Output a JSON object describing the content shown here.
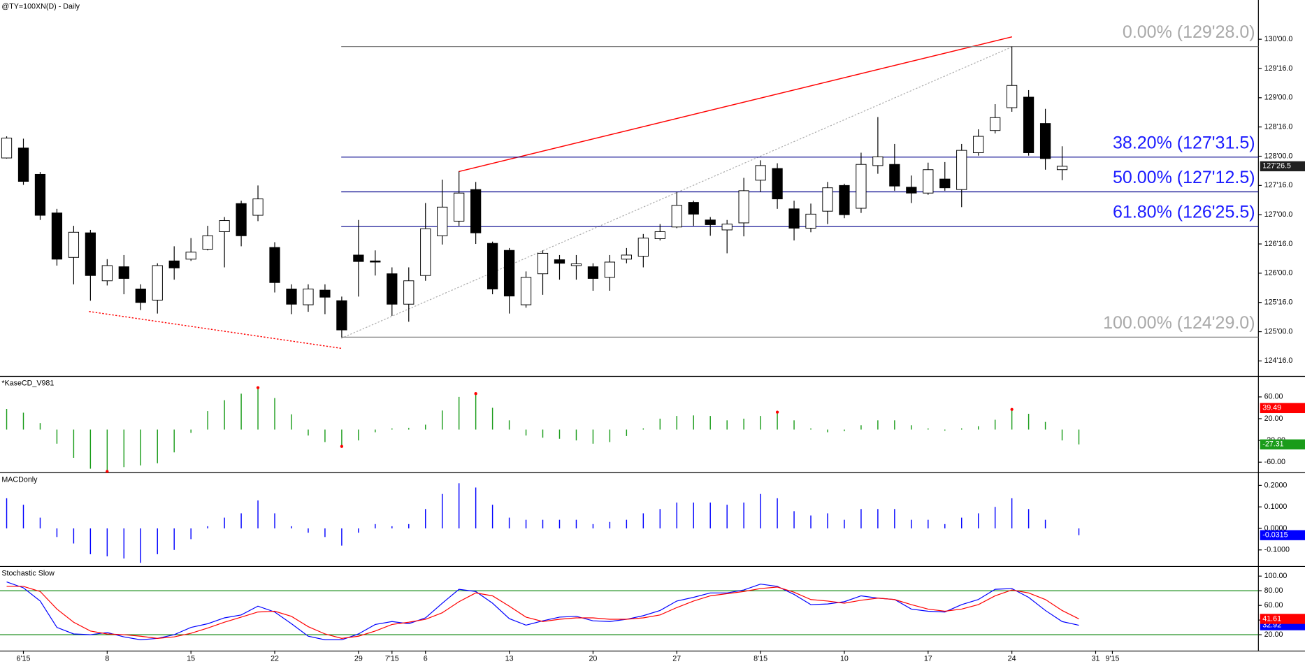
{
  "chart_data": [
    {
      "type": "candlestick",
      "title": "@TY=100XN(D) - Daily",
      "categories": [
        null,
        "6'15",
        null,
        null,
        null,
        null,
        "8",
        null,
        null,
        null,
        null,
        "15",
        null,
        null,
        null,
        null,
        "22",
        null,
        null,
        null,
        null,
        "29",
        null,
        "7'15",
        null,
        "6",
        null,
        null,
        null,
        null,
        "13",
        null,
        null,
        null,
        null,
        "20",
        null,
        null,
        null,
        null,
        "27",
        null,
        null,
        null,
        null,
        "8'15",
        null,
        null,
        null,
        null,
        "10",
        null,
        null,
        null,
        null,
        "17",
        null,
        null,
        null,
        null,
        "24",
        null,
        null,
        null,
        null,
        "31",
        "9'15"
      ],
      "open": [
        127.97,
        128.14,
        127.69,
        127.03,
        126.27,
        126.69,
        125.87,
        126.11,
        125.73,
        125.54,
        126.21,
        126.24,
        126.41,
        126.71,
        127.19,
        126.99,
        126.44,
        125.73,
        125.46,
        125.71,
        125.53,
        126.31,
        126.21,
        125.99,
        125.47,
        125.96,
        126.64,
        126.89,
        127.43,
        126.51,
        126.39,
        125.46,
        125.99,
        126.23,
        126.13,
        126.11,
        125.93,
        126.24,
        126.29,
        126.59,
        126.79,
        127.21,
        126.91,
        126.74,
        126.86,
        127.59,
        127.79,
        127.1,
        126.77,
        127.06,
        127.5,
        127.11,
        127.84,
        127.86,
        127.47,
        127.37,
        127.61,
        127.43,
        128.06,
        128.44,
        128.83,
        129.01,
        128.56,
        127.77,
        null,
        null,
        null
      ],
      "high": [
        128.34,
        128.3,
        127.73,
        127.1,
        126.81,
        126.74,
        126.24,
        126.31,
        125.81,
        126.17,
        126.46,
        126.6,
        126.81,
        126.96,
        127.24,
        127.5,
        126.53,
        125.81,
        125.81,
        125.81,
        125.6,
        126.91,
        126.39,
        126.1,
        126.1,
        127.2,
        127.6,
        127.74,
        127.56,
        126.54,
        126.43,
        126.03,
        126.39,
        126.31,
        126.31,
        126.17,
        126.31,
        126.43,
        126.67,
        126.84,
        127.39,
        127.24,
        126.96,
        126.91,
        127.63,
        127.93,
        127.88,
        127.24,
        127.19,
        127.56,
        127.53,
        128.06,
        128.67,
        128.21,
        127.67,
        127.89,
        127.9,
        128.21,
        128.46,
        128.89,
        129.875,
        129.13,
        128.81,
        128.17,
        null,
        null,
        null
      ],
      "low": [
        127.96,
        127.51,
        126.91,
        126.13,
        125.81,
        125.53,
        125.79,
        125.64,
        125.37,
        125.31,
        125.89,
        126.21,
        126.39,
        126.1,
        126.46,
        126.89,
        125.67,
        125.3,
        125.34,
        125.3,
        124.906,
        125.6,
        125.96,
        125.27,
        125.17,
        125.87,
        126.49,
        126.81,
        126.5,
        125.64,
        125.31,
        125.41,
        125.63,
        125.89,
        125.89,
        125.7,
        125.7,
        126.17,
        126.1,
        126.56,
        126.77,
        126.81,
        126.64,
        126.34,
        126.63,
        127.39,
        127.1,
        126.56,
        126.7,
        126.84,
        126.94,
        127.03,
        127.7,
        127.41,
        127.2,
        127.34,
        127.41,
        127.13,
        128.01,
        128.39,
        128.76,
        128.01,
        127.77,
        127.59,
        null,
        null,
        null
      ],
      "close": [
        128.31,
        127.57,
        126.99,
        126.24,
        126.7,
        125.96,
        126.13,
        125.91,
        125.5,
        126.13,
        126.09,
        126.36,
        126.64,
        126.9,
        126.64,
        127.27,
        125.84,
        125.47,
        125.73,
        125.59,
        125.03,
        126.2,
        126.19,
        125.47,
        125.87,
        126.76,
        127.13,
        127.37,
        126.69,
        125.73,
        125.61,
        125.93,
        126.34,
        126.17,
        126.16,
        125.91,
        126.19,
        126.31,
        126.6,
        126.71,
        127.16,
        127.01,
        126.83,
        126.84,
        127.41,
        127.84,
        127.27,
        126.77,
        127.01,
        127.46,
        127.0,
        127.86,
        127.99,
        127.49,
        127.37,
        127.77,
        127.46,
        128.1,
        128.34,
        128.66,
        129.21,
        128.06,
        127.96,
        127.828125,
        null,
        null,
        null
      ],
      "last_label": "127'26.5",
      "ylim": [
        124.243,
        130.671
      ],
      "yticks": [
        {
          "value": 124.5,
          "label": "124'16.0"
        },
        {
          "value": 125,
          "label": "125'00.0"
        },
        {
          "value": 125.5,
          "label": "125'16.0"
        },
        {
          "value": 126,
          "label": "126'00.0"
        },
        {
          "value": 126.5,
          "label": "126'16.0"
        },
        {
          "value": 127,
          "label": "127'00.0"
        },
        {
          "value": 127.5,
          "label": "127'16.0"
        },
        {
          "value": 128,
          "label": "128'00.0"
        },
        {
          "value": 128.5,
          "label": "128'16.0"
        },
        {
          "value": 129,
          "label": "129'00.0"
        },
        {
          "value": 129.5,
          "label": "129'16.0"
        },
        {
          "value": 130,
          "label": "130'00.0"
        }
      ],
      "fib_levels": [
        {
          "label": "0.00% (129'28.0)",
          "value": 129.875,
          "color": "#808080",
          "text_color": "#a9a9a9"
        },
        {
          "label": "38.20% (127'31.5)",
          "value": 127.984375,
          "color": "#00008b",
          "text_color": "#1a1aff"
        },
        {
          "label": "50.00% (127'12.5)",
          "value": 127.390625,
          "color": "#00008b",
          "text_color": "#1a1aff"
        },
        {
          "label": "61.80% (126'25.5)",
          "value": 126.796875,
          "color": "#00008b",
          "text_color": "#1a1aff"
        },
        {
          "label": "100.00% (124'29.0)",
          "value": 124.90625,
          "color": "#808080",
          "text_color": "#a9a9a9"
        }
      ]
    },
    {
      "type": "bar",
      "title": "*KaseCD_V981",
      "color": "#1a9c1a",
      "marker_color": "#ff0000",
      "badge_color": "#1a9c1a",
      "values": [
        38,
        31,
        12,
        -26,
        -52,
        -72,
        -77,
        -69,
        -66,
        -62,
        -42,
        -6,
        34,
        54,
        66,
        77,
        58,
        28,
        -11,
        -23,
        -31,
        -20,
        -5,
        2,
        3,
        9,
        35,
        60,
        66,
        40,
        17,
        -11,
        -15,
        -17,
        -20,
        -26,
        -23,
        -12,
        2,
        20,
        25,
        26,
        25,
        17,
        20,
        25,
        32,
        17,
        2,
        -5,
        -3,
        8,
        17,
        17,
        8,
        2,
        -2,
        2,
        6,
        18,
        37,
        29,
        14,
        -20,
        -27.31,
        null,
        null
      ],
      "markers": [
        6,
        15,
        20,
        28,
        46,
        60
      ],
      "badges": [
        {
          "value": 39.49,
          "color": "#ff0000"
        }
      ],
      "ylim": [
        -77,
        97
      ],
      "yticks": [
        {
          "value": -60,
          "label": "-60.00"
        },
        {
          "value": -20,
          "label": "-20.00"
        },
        {
          "value": 20,
          "label": "20.00"
        },
        {
          "value": 60,
          "label": "60.00"
        }
      ]
    },
    {
      "type": "bar",
      "title": "MACDonly",
      "color": "#0000ff",
      "badge_color": "#0000ff",
      "values": [
        0.14,
        0.11,
        0.05,
        -0.04,
        -0.07,
        -0.12,
        -0.13,
        -0.14,
        -0.16,
        -0.12,
        -0.1,
        -0.05,
        0.01,
        0.05,
        0.07,
        0.13,
        0.07,
        0.01,
        -0.02,
        -0.04,
        -0.08,
        -0.02,
        0.02,
        0.01,
        0.02,
        0.09,
        0.16,
        0.21,
        0.19,
        0.11,
        0.05,
        0.04,
        0.04,
        0.04,
        0.04,
        0.02,
        0.03,
        0.04,
        0.07,
        0.09,
        0.12,
        0.12,
        0.12,
        0.11,
        0.12,
        0.16,
        0.14,
        0.08,
        0.06,
        0.07,
        0.04,
        0.09,
        0.09,
        0.09,
        0.04,
        0.04,
        0.02,
        0.05,
        0.07,
        0.1,
        0.14,
        0.09,
        0.04,
        0,
        -0.0315,
        null,
        null
      ],
      "ylim": [
        -0.171,
        0.257
      ],
      "yticks": [
        {
          "value": -0.1,
          "label": "-0.1000"
        },
        {
          "value": 0,
          "label": "0.0000"
        },
        {
          "value": 0.1,
          "label": "0.1000"
        },
        {
          "value": 0.2,
          "label": "0.2000"
        }
      ]
    },
    {
      "type": "line",
      "title": "Stochastic Slow",
      "series": [
        {
          "color": "#0000ff",
          "badge_color": "#0000ff",
          "values": [
            92,
            84,
            66,
            30,
            21,
            20,
            23,
            17,
            13,
            15,
            20,
            30,
            35,
            43,
            47,
            59,
            51,
            35,
            18,
            13,
            13,
            21,
            34,
            38,
            35,
            43,
            63,
            82,
            79,
            63,
            42,
            33,
            39,
            44,
            45,
            39,
            38,
            41,
            46,
            53,
            66,
            71,
            77,
            77,
            81,
            89,
            86,
            75,
            61,
            62,
            65,
            73,
            70,
            68,
            55,
            52,
            51,
            61,
            68,
            82,
            83,
            71,
            53,
            38,
            32.92,
            null,
            null
          ]
        },
        {
          "color": "#ff0000",
          "badge_color": "#ff0000",
          "values": [
            86,
            86,
            79,
            55,
            37,
            25,
            21,
            20,
            18,
            15,
            17,
            22,
            29,
            37,
            44,
            51,
            52,
            45,
            31,
            21,
            15,
            18,
            25,
            34,
            37,
            41,
            50,
            65,
            77,
            73,
            59,
            44,
            38,
            41,
            43,
            43,
            41,
            41,
            43,
            47,
            57,
            66,
            73,
            76,
            79,
            83,
            85,
            78,
            68,
            66,
            63,
            67,
            70,
            68,
            61,
            55,
            52,
            55,
            61,
            73,
            81,
            77,
            68,
            53,
            41.61,
            null,
            null
          ]
        }
      ],
      "levels": [
        80,
        20
      ],
      "level_color": "#008000",
      "ylim": [
        -1.7,
        112.6
      ],
      "yticks": [
        {
          "value": 20,
          "label": "20.00"
        },
        {
          "value": 40,
          "label": "40.00"
        },
        {
          "value": 60,
          "label": "60.00"
        },
        {
          "value": 80,
          "label": "80.00"
        },
        {
          "value": 100,
          "label": "100.00"
        }
      ]
    }
  ]
}
